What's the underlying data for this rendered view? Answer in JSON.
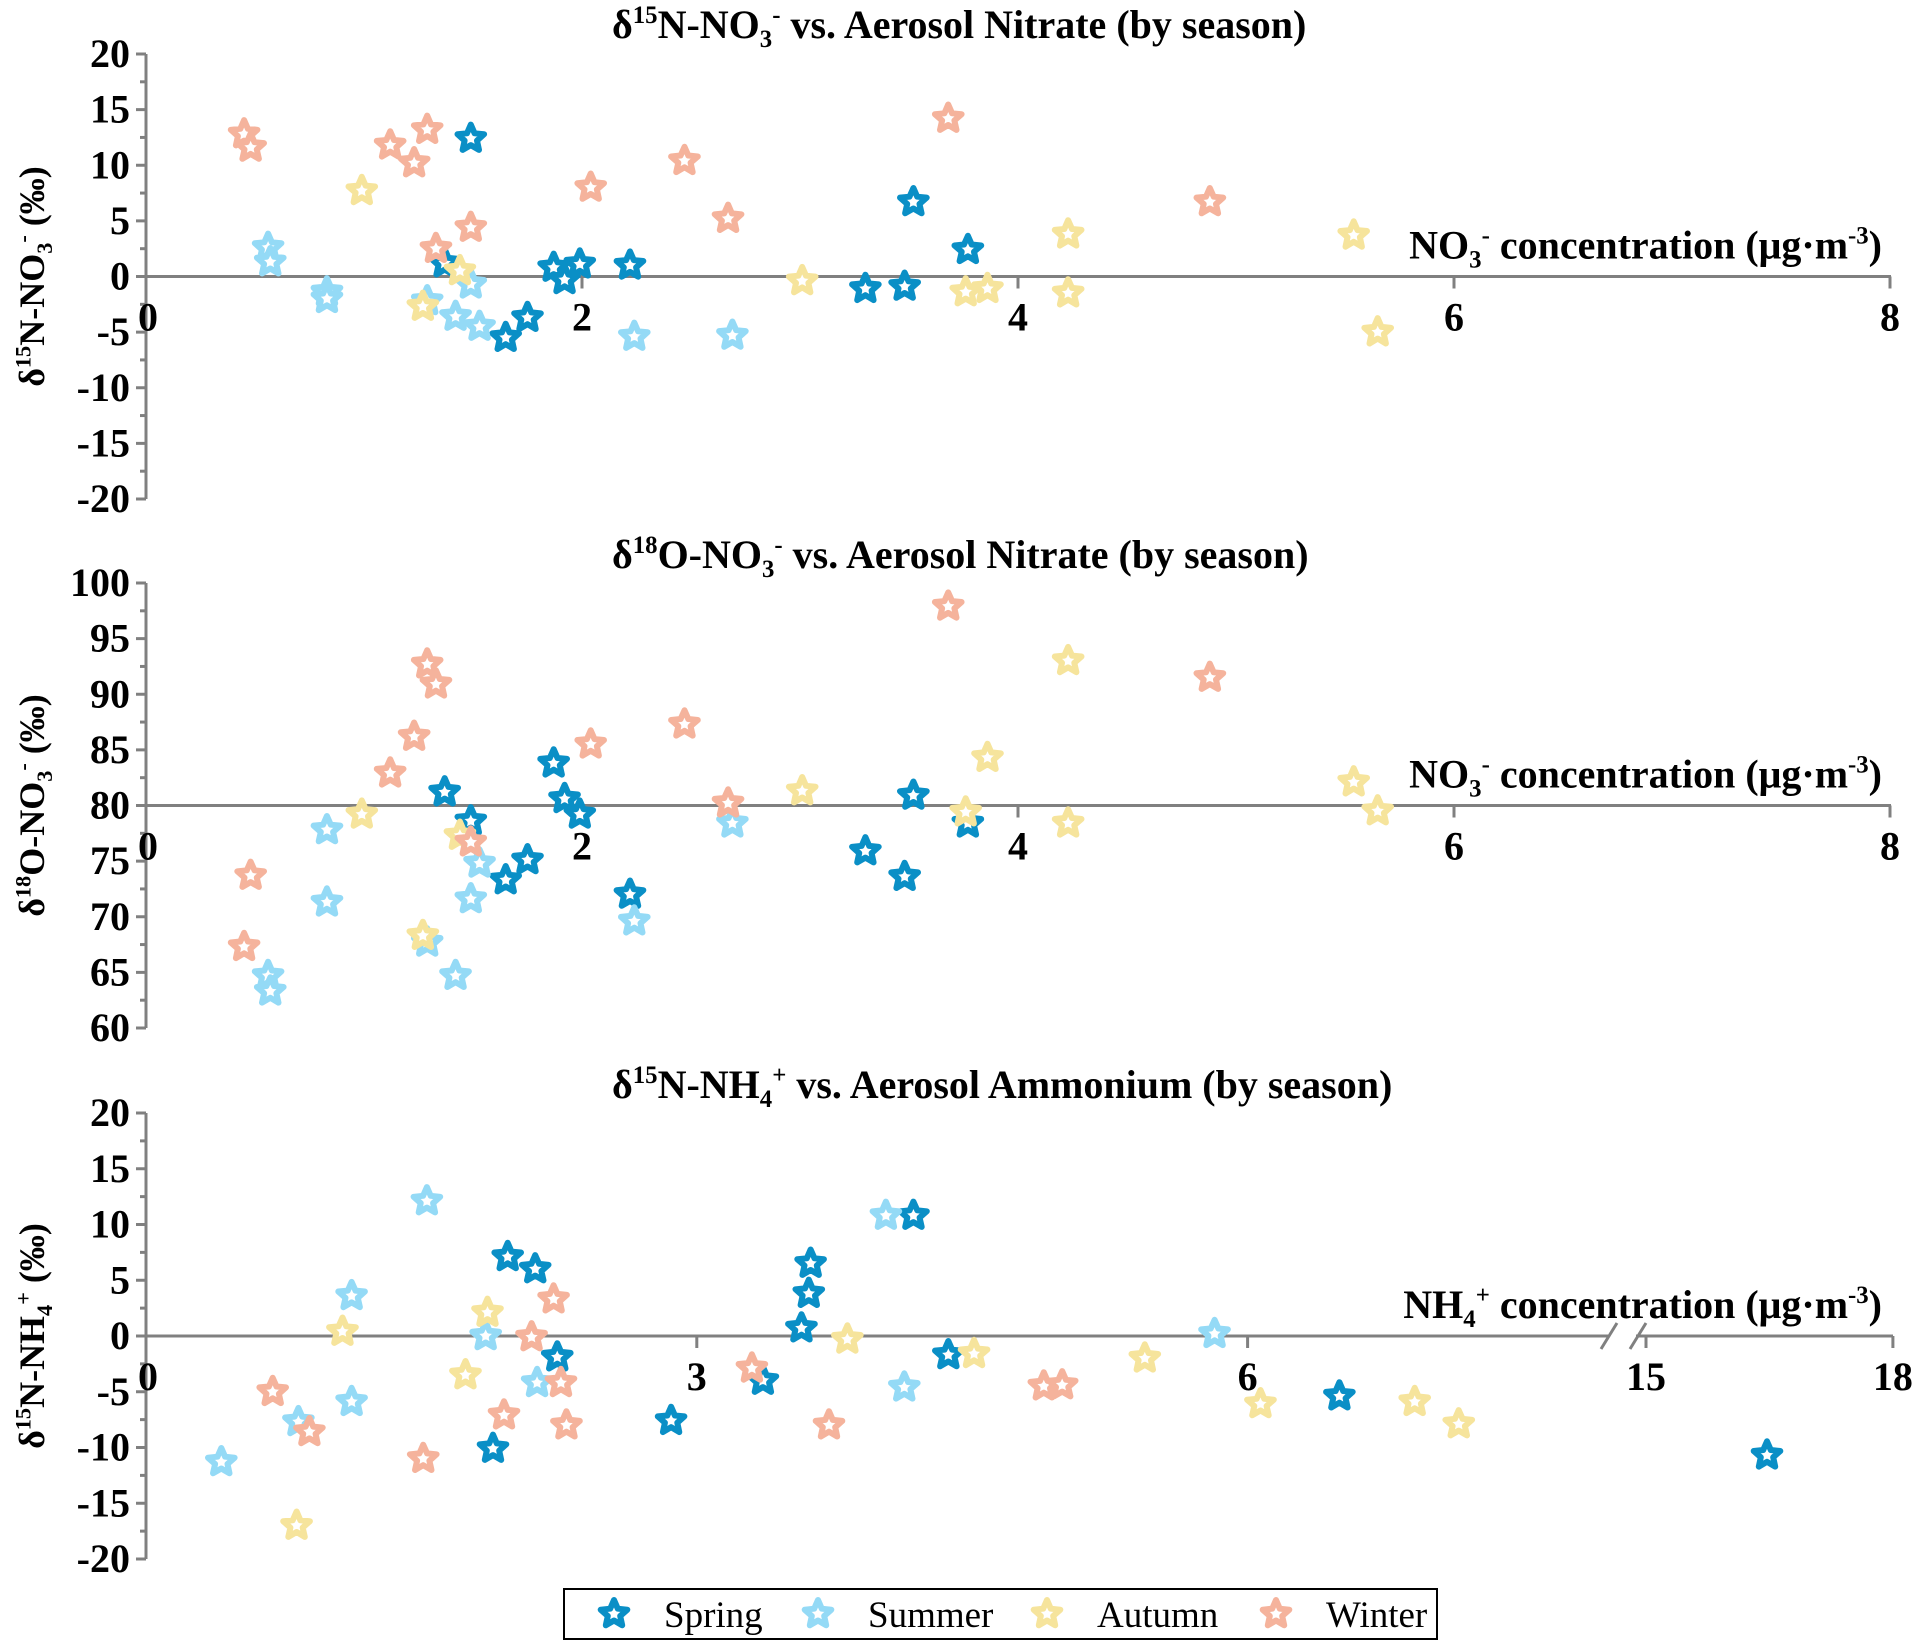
{
  "colors": {
    "Spring": "#0a8fc6",
    "Summer": "#94daf6",
    "Autumn": "#f6e49c",
    "Winter": "#f5b39c",
    "axis": "#808080"
  },
  "legend": {
    "entries": [
      "Spring",
      "Summer",
      "Autumn",
      "Winter"
    ],
    "placement": "bottom-center"
  },
  "chart_data": [
    {
      "type": "scatter",
      "title_parts": [
        [
          "δ",
          ""
        ],
        [
          "15",
          "sup"
        ],
        [
          "N-NO",
          ""
        ],
        [
          "3",
          "sub"
        ],
        [
          "-",
          "sup"
        ],
        [
          " vs. Aerosol Nitrate (by season)",
          ""
        ]
      ],
      "ylabel_parts": [
        [
          "δ",
          ""
        ],
        [
          "15",
          "sup"
        ],
        [
          "N-NO",
          ""
        ],
        [
          "3",
          "sub"
        ],
        [
          "-",
          "sup"
        ],
        [
          " (‰)",
          ""
        ]
      ],
      "xlabel_parts": [
        [
          "NO",
          ""
        ],
        [
          "3",
          "sub"
        ],
        [
          "-",
          "sup"
        ],
        [
          " concentration (μg·m",
          ""
        ],
        [
          "-3",
          "sup"
        ],
        [
          ")",
          ""
        ]
      ],
      "xlim": [
        0,
        8
      ],
      "ylim": [
        -20,
        20
      ],
      "xticks": [
        "0",
        "2",
        "4",
        "6",
        "8"
      ],
      "xtick_values": [
        0,
        2,
        4,
        6,
        8
      ],
      "yticks": [
        "20",
        "15",
        "10",
        "5",
        "0",
        "-5",
        "-10",
        "-15",
        "-20"
      ],
      "series": [
        {
          "name": "Spring",
          "points": [
            [
              1.49,
              12.4
            ],
            [
              1.37,
              1.2
            ],
            [
              1.65,
              -5.5
            ],
            [
              1.75,
              -3.7
            ],
            [
              1.87,
              0.8
            ],
            [
              1.92,
              -0.3
            ],
            [
              1.99,
              1.1
            ],
            [
              2.22,
              1.0
            ],
            [
              3.3,
              -1.1
            ],
            [
              3.48,
              -0.9
            ],
            [
              3.52,
              6.7
            ],
            [
              3.77,
              2.4
            ]
          ]
        },
        {
          "name": "Summer",
          "points": [
            [
              0.56,
              2.6
            ],
            [
              0.57,
              1.3
            ],
            [
              0.83,
              -1.4
            ],
            [
              0.83,
              -2.0
            ],
            [
              1.29,
              -2.2
            ],
            [
              1.42,
              -3.6
            ],
            [
              1.49,
              -0.7
            ],
            [
              1.53,
              -4.5
            ],
            [
              2.24,
              -5.4
            ],
            [
              2.69,
              -5.3
            ]
          ]
        },
        {
          "name": "Autumn",
          "points": [
            [
              0.99,
              7.7
            ],
            [
              1.27,
              -2.7
            ],
            [
              1.44,
              0.5
            ],
            [
              3.01,
              -0.4
            ],
            [
              3.76,
              -1.4
            ],
            [
              3.86,
              -1.1
            ],
            [
              4.23,
              3.8
            ],
            [
              4.23,
              -1.5
            ],
            [
              5.54,
              3.7
            ],
            [
              5.65,
              -5.0
            ]
          ]
        },
        {
          "name": "Winter",
          "points": [
            [
              0.45,
              12.8
            ],
            [
              0.48,
              11.6
            ],
            [
              1.12,
              11.8
            ],
            [
              1.23,
              10.2
            ],
            [
              1.29,
              13.2
            ],
            [
              1.33,
              2.5
            ],
            [
              1.49,
              4.4
            ],
            [
              2.04,
              8.0
            ],
            [
              2.47,
              10.4
            ],
            [
              2.67,
              5.2
            ],
            [
              3.68,
              14.2
            ],
            [
              4.88,
              6.7
            ]
          ]
        }
      ]
    },
    {
      "type": "scatter",
      "title_parts": [
        [
          "δ",
          ""
        ],
        [
          "18",
          "sup"
        ],
        [
          "O-NO",
          ""
        ],
        [
          "3",
          "sub"
        ],
        [
          "-",
          "sup"
        ],
        [
          " vs. Aerosol Nitrate (by season)",
          ""
        ]
      ],
      "ylabel_parts": [
        [
          "δ",
          ""
        ],
        [
          "18",
          "sup"
        ],
        [
          "O-NO",
          ""
        ],
        [
          "3",
          "sub"
        ],
        [
          "-",
          "sup"
        ],
        [
          " (‰)",
          ""
        ]
      ],
      "xlabel_parts": [
        [
          "NO",
          ""
        ],
        [
          "3",
          "sub"
        ],
        [
          "-",
          "sup"
        ],
        [
          " concentration (μg·m",
          ""
        ],
        [
          "-3",
          "sup"
        ],
        [
          ")",
          ""
        ]
      ],
      "xlim": [
        0,
        8
      ],
      "ylim": [
        60,
        100
      ],
      "axis_cross_y": 80,
      "xticks": [
        "0",
        "2",
        "4",
        "6",
        "8"
      ],
      "xtick_values": [
        0,
        2,
        4,
        6,
        8
      ],
      "yticks": [
        "100",
        "95",
        "90",
        "85",
        "80",
        "75",
        "70",
        "65",
        "60"
      ],
      "series": [
        {
          "name": "Spring",
          "points": [
            [
              1.37,
              81.2
            ],
            [
              1.49,
              78.6
            ],
            [
              1.65,
              73.3
            ],
            [
              1.75,
              75.1
            ],
            [
              1.87,
              83.8
            ],
            [
              1.92,
              80.6
            ],
            [
              1.99,
              79.2
            ],
            [
              2.22,
              72.0
            ],
            [
              3.3,
              75.9
            ],
            [
              3.48,
              73.6
            ],
            [
              3.52,
              80.9
            ],
            [
              3.77,
              78.4
            ]
          ]
        },
        {
          "name": "Summer",
          "points": [
            [
              0.56,
              64.7
            ],
            [
              0.57,
              63.3
            ],
            [
              0.83,
              77.8
            ],
            [
              0.83,
              71.3
            ],
            [
              1.29,
              67.7
            ],
            [
              1.42,
              64.7
            ],
            [
              1.49,
              71.6
            ],
            [
              1.53,
              74.8
            ],
            [
              2.24,
              69.6
            ],
            [
              2.69,
              78.4
            ]
          ]
        },
        {
          "name": "Autumn",
          "points": [
            [
              0.99,
              79.2
            ],
            [
              1.27,
              68.3
            ],
            [
              1.44,
              77.3
            ],
            [
              3.01,
              81.3
            ],
            [
              3.76,
              79.4
            ],
            [
              3.86,
              84.3
            ],
            [
              4.23,
              93.0
            ],
            [
              4.23,
              78.4
            ],
            [
              5.54,
              82.1
            ],
            [
              5.65,
              79.5
            ]
          ]
        },
        {
          "name": "Winter",
          "points": [
            [
              0.45,
              67.3
            ],
            [
              0.48,
              73.7
            ],
            [
              1.12,
              82.9
            ],
            [
              1.23,
              86.2
            ],
            [
              1.29,
              92.7
            ],
            [
              1.33,
              90.9
            ],
            [
              1.49,
              76.7
            ],
            [
              2.04,
              85.5
            ],
            [
              2.47,
              87.3
            ],
            [
              2.67,
              80.2
            ],
            [
              3.68,
              97.9
            ],
            [
              4.88,
              91.5
            ]
          ]
        }
      ]
    },
    {
      "type": "scatter",
      "title_parts": [
        [
          "δ",
          ""
        ],
        [
          "15",
          "sup"
        ],
        [
          "N-NH",
          ""
        ],
        [
          "4",
          "sub"
        ],
        [
          "+",
          "sup"
        ],
        [
          " vs. Aerosol Ammonium (by season)",
          ""
        ]
      ],
      "ylabel_parts": [
        [
          "δ",
          ""
        ],
        [
          "15",
          "sup"
        ],
        [
          "N-NH",
          ""
        ],
        [
          "4",
          "sub"
        ],
        [
          "+",
          "sup"
        ],
        [
          " (‰)",
          ""
        ]
      ],
      "xlabel_parts": [
        [
          "NH",
          ""
        ],
        [
          "4",
          "sub"
        ],
        [
          "+",
          "sup"
        ],
        [
          " concentration (μg·m",
          ""
        ],
        [
          "-3",
          "sup"
        ],
        [
          ")",
          ""
        ]
      ],
      "xlim": [
        0,
        18
      ],
      "x_break": [
        8,
        15
      ],
      "ylim": [
        -20,
        20
      ],
      "xticks": [
        "0",
        "3",
        "6",
        "15",
        "18"
      ],
      "xtick_values": [
        0,
        3,
        6,
        15,
        18
      ],
      "yticks": [
        "20",
        "15",
        "10",
        "5",
        "0",
        "-5",
        "-10",
        "-15",
        "-20"
      ],
      "series": [
        {
          "name": "Spring",
          "points": [
            [
              1.97,
              7.1
            ],
            [
              2.12,
              6.0
            ],
            [
              1.89,
              -10.1
            ],
            [
              2.24,
              -1.9
            ],
            [
              2.86,
              -7.6
            ],
            [
              3.36,
              -4.0
            ],
            [
              3.57,
              0.7
            ],
            [
              3.61,
              3.8
            ],
            [
              3.62,
              6.5
            ],
            [
              4.18,
              10.8
            ],
            [
              4.37,
              -1.7
            ],
            [
              6.5,
              -5.4
            ],
            [
              16.47,
              -10.7
            ]
          ]
        },
        {
          "name": "Summer",
          "points": [
            [
              0.41,
              -11.3
            ],
            [
              0.83,
              -7.7
            ],
            [
              1.12,
              -5.9
            ],
            [
              1.12,
              3.6
            ],
            [
              1.53,
              12.1
            ],
            [
              1.85,
              0.0
            ],
            [
              2.13,
              -4.2
            ],
            [
              4.03,
              10.8
            ],
            [
              4.13,
              -4.6
            ],
            [
              5.82,
              0.2
            ]
          ]
        },
        {
          "name": "Autumn",
          "points": [
            [
              0.82,
              -17.0
            ],
            [
              1.07,
              0.4
            ],
            [
              1.74,
              -3.5
            ],
            [
              1.86,
              2.1
            ],
            [
              3.82,
              -0.3
            ],
            [
              4.51,
              -1.6
            ],
            [
              5.44,
              -2.0
            ],
            [
              6.07,
              -6.1
            ],
            [
              6.91,
              -5.9
            ],
            [
              7.15,
              -7.9
            ]
          ]
        },
        {
          "name": "Winter",
          "points": [
            [
              0.69,
              -5.0
            ],
            [
              0.89,
              -8.6
            ],
            [
              1.51,
              -11.0
            ],
            [
              1.95,
              -7.1
            ],
            [
              2.1,
              -0.1
            ],
            [
              2.22,
              3.3
            ],
            [
              2.26,
              -4.2
            ],
            [
              2.29,
              -8.0
            ],
            [
              3.3,
              -2.9
            ],
            [
              3.72,
              -8.0
            ],
            [
              4.89,
              -4.5
            ],
            [
              4.99,
              -4.4
            ]
          ]
        }
      ]
    }
  ]
}
